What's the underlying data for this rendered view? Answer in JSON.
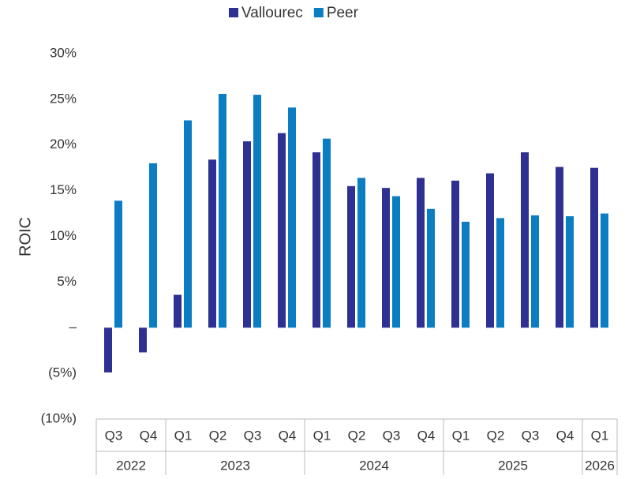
{
  "chart_data": {
    "type": "bar",
    "y_label": "ROIC",
    "groups": [
      {
        "label": "2022",
        "categories": [
          "Q3",
          "Q4"
        ]
      },
      {
        "label": "2023",
        "categories": [
          "Q1",
          "Q2",
          "Q3",
          "Q4"
        ]
      },
      {
        "label": "2024",
        "categories": [
          "Q1",
          "Q2",
          "Q3",
          "Q4"
        ]
      },
      {
        "label": "2025",
        "categories": [
          "Q1",
          "Q2",
          "Q3",
          "Q4"
        ]
      },
      {
        "label": "2026",
        "categories": [
          "Q1"
        ]
      }
    ],
    "series": [
      {
        "name": "Vallourec",
        "color": "#2e3192",
        "values": [
          -4.9,
          -2.7,
          3.6,
          18.4,
          20.4,
          21.3,
          19.2,
          15.5,
          15.3,
          16.4,
          16.1,
          16.9,
          19.2,
          17.6,
          17.5
        ]
      },
      {
        "name": "Peer",
        "color": "#0b7dc3",
        "values": [
          13.9,
          18.0,
          22.7,
          25.6,
          25.5,
          24.1,
          20.7,
          16.4,
          14.4,
          13.0,
          11.6,
          12.0,
          12.3,
          12.2,
          12.5
        ]
      }
    ],
    "ylim": [
      -10,
      30
    ],
    "yticks": [
      {
        "value": -10,
        "label": "(10%)"
      },
      {
        "value": -5,
        "label": "(5%)"
      },
      {
        "value": 0,
        "label": "–"
      },
      {
        "value": 5,
        "label": "5%"
      },
      {
        "value": 10,
        "label": "10%"
      },
      {
        "value": 15,
        "label": "15%"
      },
      {
        "value": 20,
        "label": "20%"
      },
      {
        "value": 25,
        "label": "25%"
      },
      {
        "value": 30,
        "label": "30%"
      }
    ],
    "grid": false,
    "legend": "top"
  }
}
